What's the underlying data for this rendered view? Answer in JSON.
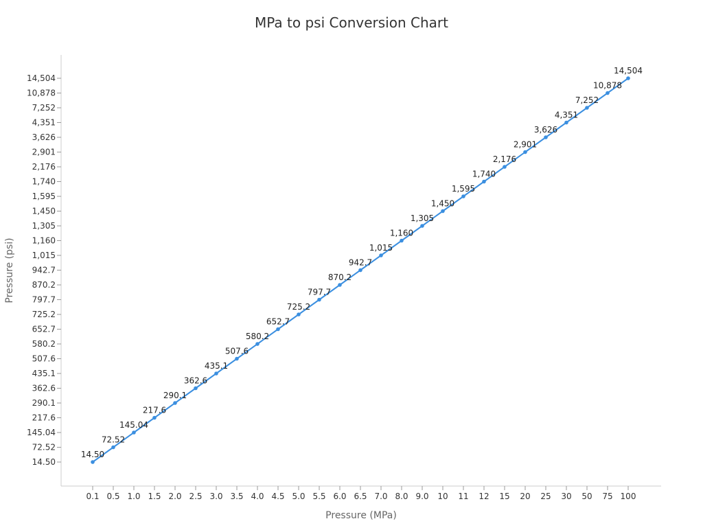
{
  "chart_data": {
    "type": "line",
    "title": "MPa to psi Conversion Chart",
    "xlabel": "Pressure (MPa)",
    "ylabel": "Pressure (psi)",
    "x_scale": "categorical",
    "y_scale": "categorical",
    "grid": false,
    "legend": "none",
    "colors": {
      "line": "#3b8fe0",
      "text": "#333333",
      "axis_title": "#666666",
      "axis": "#cccccc"
    },
    "categories": [
      "0.1",
      "0.5",
      "1.0",
      "1.5",
      "2.0",
      "2.5",
      "3.0",
      "3.5",
      "4.0",
      "4.5",
      "5.0",
      "5.5",
      "6.0",
      "6.5",
      "7.0",
      "8.0",
      "9.0",
      "10",
      "11",
      "12",
      "15",
      "20",
      "25",
      "30",
      "50",
      "75",
      "100"
    ],
    "y_tick_labels": [
      "14.50",
      "72.52",
      "145.04",
      "217.6",
      "290.1",
      "362.6",
      "435.1",
      "507.6",
      "580.2",
      "652.7",
      "725.2",
      "797.7",
      "870.2",
      "942.7",
      "1,015",
      "1,160",
      "1,305",
      "1,450",
      "1,595",
      "1,740",
      "2,176",
      "2,901",
      "3,626",
      "4,351",
      "7,252",
      "10,878",
      "14,504"
    ],
    "series": [
      {
        "values": [
          14.5,
          72.52,
          145.04,
          217.6,
          290.1,
          362.6,
          435.1,
          507.6,
          580.2,
          652.7,
          725.2,
          797.7,
          870.2,
          942.7,
          1015,
          1160,
          1305,
          1450,
          1595,
          1740,
          2176,
          2901,
          3626,
          4351,
          7252,
          10878,
          14504
        ],
        "data_labels": [
          "14.50",
          "72.52",
          "145.04",
          "217.6",
          "290.1",
          "362.6",
          "435.1",
          "507.6",
          "580.2",
          "652.7",
          "725.2",
          "797.7",
          "870.2",
          "942.7",
          "1,015",
          "1,160",
          "1,305",
          "1,450",
          "1,595",
          "1,740",
          "2,176",
          "2,901",
          "3,626",
          "4,351",
          "7,252",
          "10,878",
          "14,504"
        ]
      }
    ]
  }
}
